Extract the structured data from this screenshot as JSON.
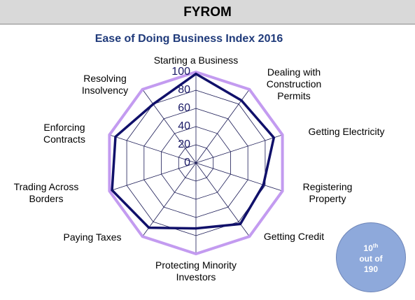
{
  "header": {
    "title": "FYROM"
  },
  "chart_data": {
    "type": "radar",
    "title": "Ease of Doing Business Index 2016",
    "categories": [
      "Starting a Business",
      "Dealing with Construction Permits",
      "Getting Electricity",
      "Registering Property",
      "Getting Credit",
      "Protecting Minority Investors",
      "Paying Taxes",
      "Trading Across Borders",
      "Enforcing Contracts",
      "Resolving Insolvency"
    ],
    "series": [
      {
        "color": "#c39bf0",
        "values": [
          100,
          100,
          100,
          100,
          100,
          100,
          100,
          100,
          100,
          100
        ]
      },
      {
        "color": "#10106a",
        "values": [
          98,
          85,
          90,
          78,
          83,
          72,
          88,
          97,
          93,
          80
        ]
      }
    ],
    "ylim": [
      0,
      100
    ],
    "yticks": [
      0,
      20,
      40,
      60,
      80,
      100
    ],
    "grid": true
  },
  "badge": {
    "rank": "10",
    "suffix": "th",
    "line2": "out of",
    "line3": "190"
  }
}
